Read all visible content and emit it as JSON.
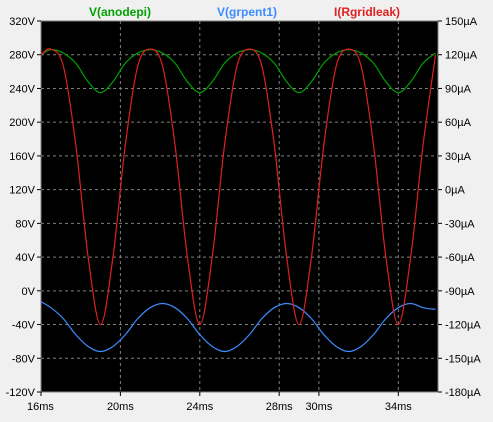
{
  "chart_data": {
    "type": "line",
    "background": "#000000",
    "grid": true,
    "grid_color": "#7f7f7f",
    "legend_position": "top",
    "x_ticks": [
      "16ms",
      "20ms",
      "24ms",
      "28ms",
      "30ms",
      "34ms"
    ],
    "x_tick_values": [
      16,
      20,
      24,
      28,
      30,
      34
    ],
    "xlim": [
      16,
      36
    ],
    "left_axis": {
      "ticks": [
        "320V",
        "280V",
        "240V",
        "200V",
        "160V",
        "120V",
        "80V",
        "40V",
        "0V",
        "-40V",
        "-80V",
        "-120V"
      ],
      "ylim": [
        -120,
        320
      ]
    },
    "right_axis": {
      "ticks": [
        "150µA",
        "120µA",
        "90µA",
        "60µA",
        "30µA",
        "0µA",
        "-30µA",
        "-60µA",
        "-90µA",
        "-120µA",
        "-150µA",
        "-180µA"
      ],
      "ylim": [
        -180,
        150
      ]
    },
    "series": [
      {
        "name": "V(anodepi)",
        "color": "#00a000",
        "axis": "left",
        "x": [
          16,
          16.5,
          17.125,
          17.75,
          18.375,
          19,
          19.625,
          20.25,
          20.875,
          21.5,
          22.125,
          22.75,
          23.375,
          24,
          24.625,
          25.25,
          25.875,
          26.5,
          27.125,
          27.75,
          28.375,
          29,
          29.625,
          30.25,
          30.875,
          31.5,
          32.125,
          32.75,
          33.375,
          34,
          34.625,
          35.25,
          35.875
        ],
        "y": [
          280,
          286,
          282,
          270,
          248,
          235,
          248,
          270,
          282,
          286,
          282,
          270,
          248,
          235,
          248,
          270,
          282,
          286,
          282,
          270,
          248,
          235,
          248,
          270,
          282,
          286,
          282,
          270,
          248,
          235,
          248,
          270,
          282
        ]
      },
      {
        "name": "V(grpent1)",
        "color": "#3c8cff",
        "axis": "left",
        "x": [
          16,
          16.5,
          17.125,
          17.75,
          18.375,
          19,
          19.625,
          20.25,
          20.875,
          21.5,
          22.125,
          22.75,
          23.375,
          24,
          24.625,
          25.25,
          25.875,
          26.5,
          27.125,
          27.75,
          28.375,
          29,
          29.625,
          30.25,
          30.875,
          31.5,
          32.125,
          32.75,
          33.375,
          34,
          34.625,
          35.25,
          35.875
        ],
        "y": [
          -13,
          -20,
          -33,
          -52,
          -66,
          -72,
          -66,
          -52,
          -33,
          -20,
          -15,
          -20,
          -33,
          -52,
          -66,
          -72,
          -66,
          -52,
          -33,
          -20,
          -15,
          -20,
          -33,
          -52,
          -66,
          -72,
          -66,
          -52,
          -33,
          -20,
          -15,
          -20,
          -22
        ]
      },
      {
        "name": "I(Rgridleak)",
        "color": "#e02020",
        "axis": "right",
        "x": [
          16,
          16.5,
          17.125,
          17.75,
          18.375,
          19,
          19.625,
          20.25,
          20.875,
          21.5,
          22.125,
          22.75,
          23.375,
          24,
          24.625,
          25.25,
          25.875,
          26.5,
          27.125,
          27.75,
          28.375,
          29,
          29.625,
          30.25,
          30.875,
          31.5,
          32.125,
          32.75,
          33.375,
          34,
          34.625,
          35.25,
          35.875
        ],
        "y": [
          120,
          125,
          110,
          40,
          -60,
          -120,
          -60,
          40,
          110,
          125,
          110,
          40,
          -60,
          -120,
          -60,
          40,
          110,
          125,
          110,
          40,
          -60,
          -120,
          -60,
          40,
          110,
          125,
          110,
          40,
          -60,
          -120,
          -60,
          40,
          120
        ]
      }
    ]
  }
}
